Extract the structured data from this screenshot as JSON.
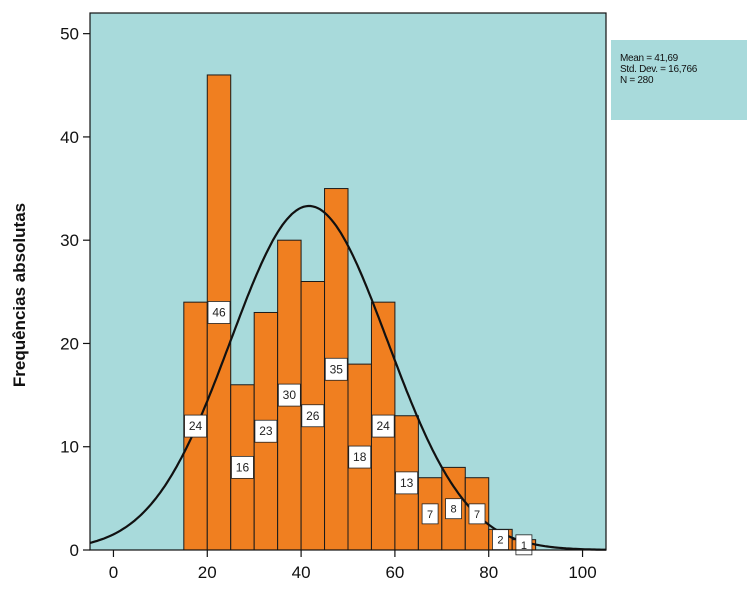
{
  "chart_data": {
    "type": "histogram",
    "ylabel": "Frequências absolutas",
    "xlabel": "",
    "xlim": [
      -5,
      105
    ],
    "ylim": [
      0,
      52
    ],
    "x_ticks": [
      0,
      20,
      40,
      60,
      80,
      100
    ],
    "y_ticks": [
      0,
      10,
      20,
      30,
      40,
      50
    ],
    "bin_width": 5,
    "bins": [
      {
        "start": 15,
        "end": 20,
        "count": 24
      },
      {
        "start": 20,
        "end": 25,
        "count": 46
      },
      {
        "start": 25,
        "end": 30,
        "count": 16
      },
      {
        "start": 30,
        "end": 35,
        "count": 23
      },
      {
        "start": 35,
        "end": 40,
        "count": 30
      },
      {
        "start": 40,
        "end": 45,
        "count": 26
      },
      {
        "start": 45,
        "end": 50,
        "count": 35
      },
      {
        "start": 50,
        "end": 55,
        "count": 18
      },
      {
        "start": 55,
        "end": 60,
        "count": 24
      },
      {
        "start": 60,
        "end": 65,
        "count": 13
      },
      {
        "start": 65,
        "end": 70,
        "count": 7
      },
      {
        "start": 70,
        "end": 75,
        "count": 8
      },
      {
        "start": 75,
        "end": 80,
        "count": 7
      },
      {
        "start": 80,
        "end": 85,
        "count": 2
      },
      {
        "start": 85,
        "end": 90,
        "count": 1
      }
    ],
    "normal_curve": {
      "mean": 41.69,
      "sd": 16.766,
      "n": 280
    },
    "stats": {
      "mean_label": "Mean = 41,69",
      "sd_label": "Std. Dev. = 16,766",
      "n_label": "N = 280"
    },
    "colors": {
      "plot_background": "#a8dadb",
      "bar_fill": "#f07f20",
      "bar_stroke": "#1a1a1a",
      "curve": "#111111"
    }
  }
}
